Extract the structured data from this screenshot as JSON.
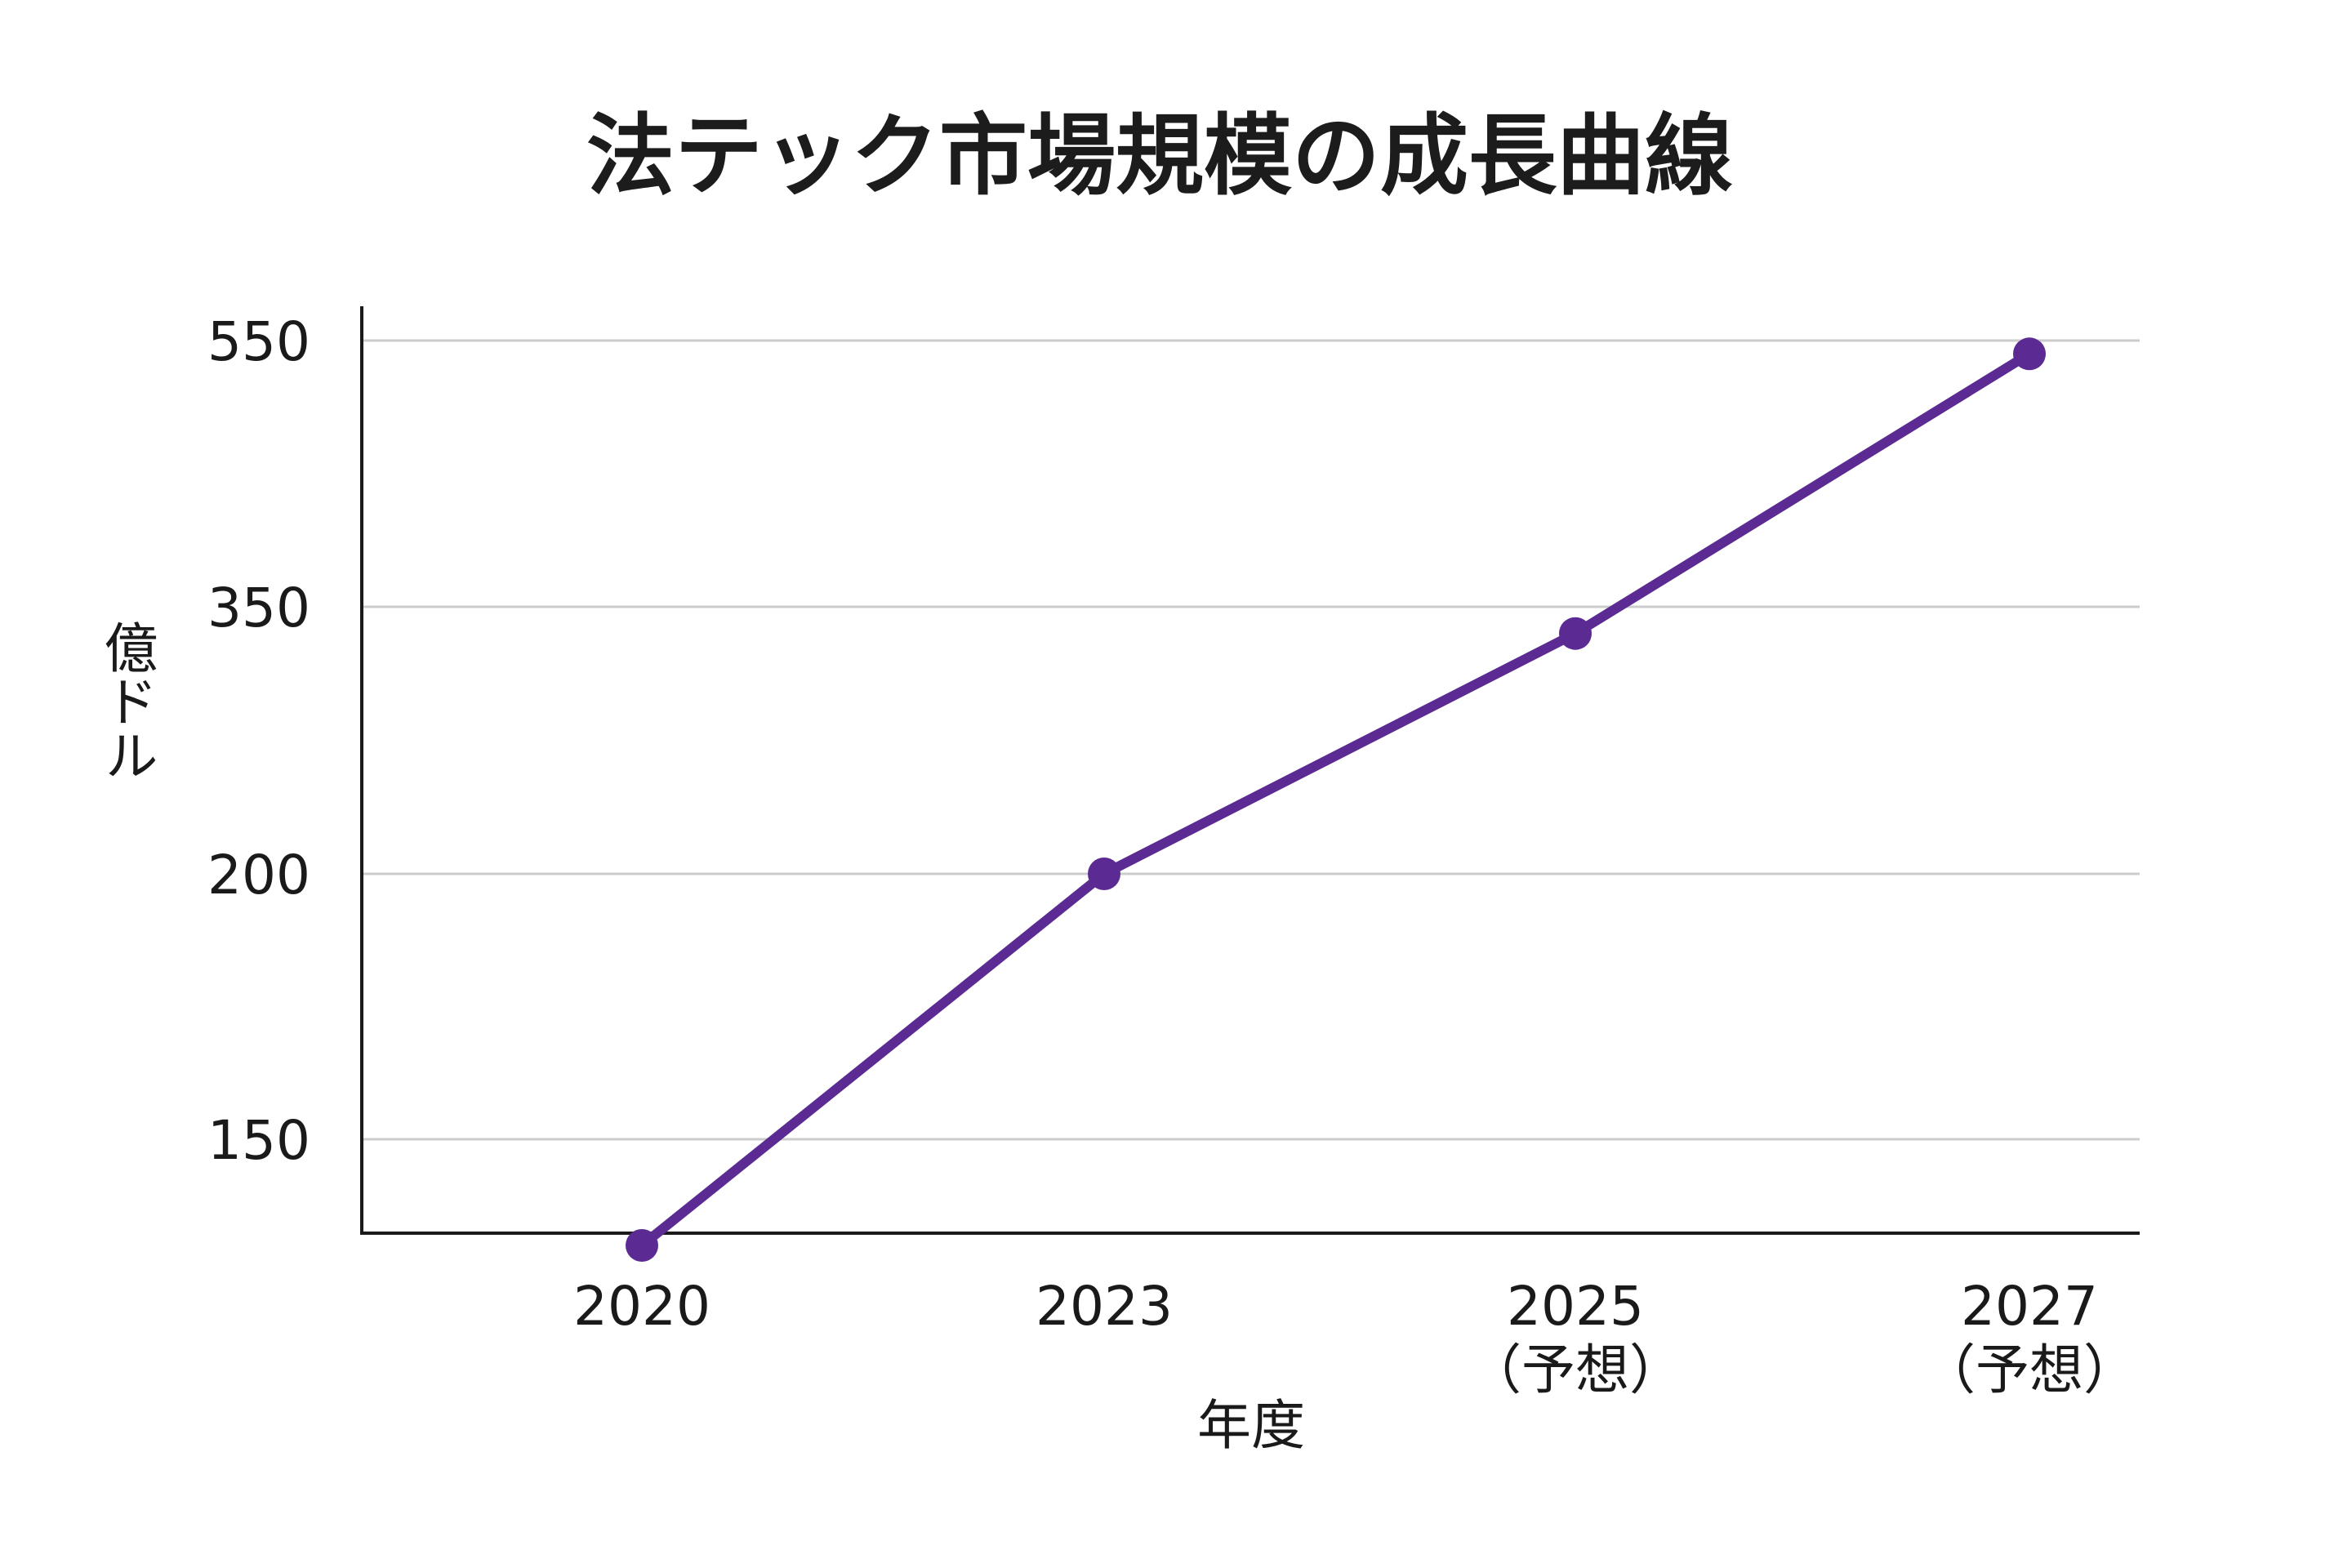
{
  "colors": {
    "line": "#5b2a92",
    "grid": "#cccccc",
    "axis": "#1a1a1a"
  },
  "chart_data": {
    "type": "line",
    "title": "法テック市場規模の成長曲線",
    "xlabel": "年度",
    "ylabel": "億ドル",
    "categories": [
      {
        "year": "2020",
        "note": ""
      },
      {
        "year": "2023",
        "note": ""
      },
      {
        "year": "2025",
        "note": "（予想）"
      },
      {
        "year": "2027",
        "note": "（予想）"
      }
    ],
    "y_ticks": [
      150,
      200,
      350,
      550
    ],
    "values": [
      130,
      200,
      335,
      540
    ],
    "grid": true,
    "legend": "none"
  }
}
